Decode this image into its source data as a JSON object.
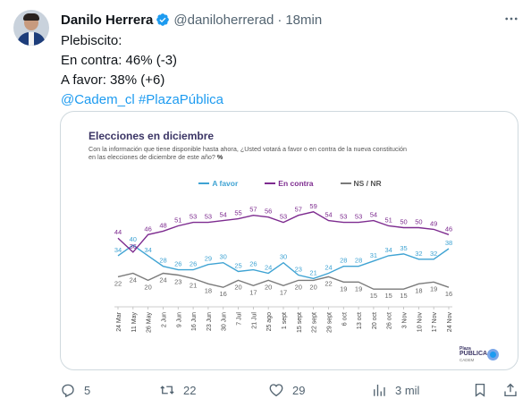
{
  "tweet": {
    "author_name": "Danilo Herrera",
    "handle": "@daniloherrerad",
    "separator": "·",
    "time": "18min",
    "lines": [
      "Plebiscito:",
      "En contra: 46% (-3)",
      "A favor: 38% (+6)"
    ],
    "mentions": [
      {
        "text": "@Cadem_cl"
      },
      {
        "text": "#PlazaPública"
      }
    ]
  },
  "card": {
    "title": "Elecciones en diciembre",
    "subtitle_line1": "Con la información que tiene disponible hasta ahora, ¿Usted votará a favor o en contra de la nueva constitución",
    "subtitle_line2": "en las elecciones de diciembre de este año?",
    "subtitle_unit": "%",
    "brand_line1": "Plaza",
    "brand_line2": "PÚBLICA",
    "brand_line3": "CADEM"
  },
  "chart_data": {
    "type": "line",
    "title": "Elecciones en diciembre",
    "categories": [
      "24 Mar",
      "11 May",
      "26 May",
      "2 Jun",
      "9 Jun",
      "16 Jun",
      "23 Jun",
      "30 Jun",
      "7 Jul",
      "21 Jul",
      "25 ago",
      "1 sept",
      "15 sept",
      "22 sept",
      "29 sept",
      "6 oct",
      "13 oct",
      "20 oct",
      "26 oct",
      "3 Nov",
      "10 Nov",
      "17 Nov",
      "24 Nov"
    ],
    "series": [
      {
        "name": "A favor",
        "color": "#3fa3d3",
        "values": [
          34,
          40,
          34,
          28,
          26,
          26,
          29,
          30,
          25,
          26,
          24,
          30,
          23,
          21,
          24,
          28,
          28,
          31,
          34,
          35,
          32,
          32,
          38
        ]
      },
      {
        "name": "En contra",
        "color": "#7d2b8f",
        "values": [
          44,
          36,
          46,
          48,
          51,
          53,
          53,
          54,
          55,
          57,
          56,
          53,
          57,
          59,
          54,
          53,
          53,
          54,
          51,
          50,
          50,
          49,
          46
        ]
      },
      {
        "name": "NS / NR",
        "color": "#7a7a7a",
        "values": [
          22,
          24,
          20,
          24,
          23,
          21,
          18,
          16,
          20,
          17,
          20,
          17,
          20,
          20,
          22,
          19,
          19,
          15,
          15,
          15,
          18,
          19,
          16
        ]
      }
    ],
    "ylim": [
      10,
      65
    ],
    "grid": false,
    "legend": "top-center"
  },
  "actions": {
    "replies": "5",
    "reposts": "22",
    "likes": "29",
    "views": "3 mil"
  },
  "colors": {
    "link": "#1d9bf0",
    "muted": "#536471",
    "verified": "#1d9bf0"
  },
  "icons": [
    "verified-badge-icon",
    "more-icon",
    "reply-icon",
    "repost-icon",
    "like-icon",
    "views-icon",
    "bookmark-icon",
    "share-icon"
  ]
}
